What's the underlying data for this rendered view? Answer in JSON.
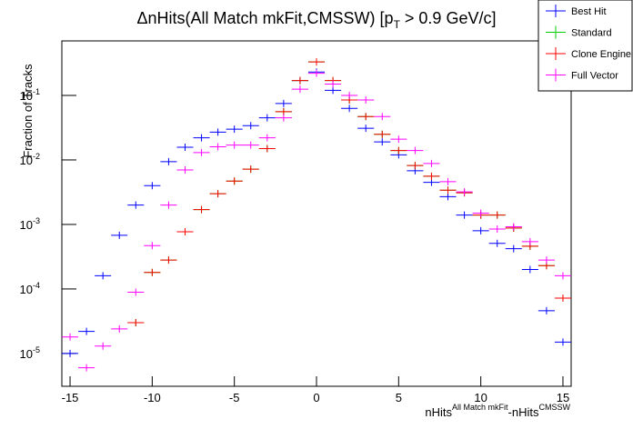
{
  "chart_data": {
    "type": "histogram",
    "title": [
      "ΔnHits(All Match mkFit,CMSSW) [p",
      "T",
      " > 0.9 GeV/c]"
    ],
    "x_label": [
      "nHits",
      "All Match mkFit",
      "-nHits",
      "CMSSW"
    ],
    "y_label": "Fraction of Tracks",
    "x": [
      -15,
      -14,
      -13,
      -12,
      -11,
      -10,
      -9,
      -8,
      -7,
      -6,
      -5,
      -4,
      -3,
      -2,
      -1,
      0,
      1,
      2,
      3,
      4,
      5,
      6,
      7,
      8,
      9,
      10,
      11,
      12,
      13,
      14,
      15
    ],
    "series": [
      {
        "name": "Best Hit",
        "color": "#0000ff",
        "values": [
          1e-05,
          2.2e-05,
          0.00016,
          0.00068,
          0.002,
          0.004,
          0.0094,
          0.0157,
          0.022,
          0.027,
          0.03,
          0.034,
          0.045,
          0.075,
          0.17,
          0.23,
          0.12,
          0.063,
          0.031,
          0.019,
          0.012,
          0.0068,
          0.0045,
          0.0027,
          0.0014,
          0.0008,
          0.00051,
          0.00042,
          0.0002,
          4.6e-05,
          1.5e-05
        ]
      },
      {
        "name": "Standard",
        "color": "#00cc00",
        "values": [
          null,
          null,
          null,
          null,
          3e-05,
          0.00018,
          0.00028,
          0.00077,
          0.0017,
          0.003,
          0.0047,
          0.0072,
          0.015,
          0.056,
          0.17,
          0.33,
          0.17,
          0.085,
          0.047,
          0.025,
          0.014,
          0.0082,
          0.0056,
          0.0034,
          0.0031,
          0.0014,
          0.0014,
          0.00088,
          0.00046,
          0.00023,
          7.2e-05
        ]
      },
      {
        "name": "Clone Engine",
        "color": "#ff0000",
        "values": [
          null,
          null,
          null,
          null,
          3e-05,
          0.00018,
          0.00028,
          0.00077,
          0.0017,
          0.003,
          0.0047,
          0.0072,
          0.015,
          0.056,
          0.17,
          0.33,
          0.17,
          0.085,
          0.047,
          0.025,
          0.014,
          0.0082,
          0.0056,
          0.0034,
          0.0031,
          0.0014,
          0.0014,
          0.00088,
          0.00046,
          0.00023,
          7.2e-05
        ]
      },
      {
        "name": "Full Vector",
        "color": "#ff00ff",
        "values": [
          1.8e-05,
          6e-06,
          1.3e-05,
          2.4e-05,
          8.9e-05,
          0.00047,
          0.002,
          0.007,
          0.013,
          0.016,
          0.017,
          0.017,
          0.022,
          0.045,
          0.125,
          0.22,
          0.15,
          0.1,
          0.085,
          0.047,
          0.021,
          0.014,
          0.0088,
          0.0046,
          0.0032,
          0.0015,
          0.00085,
          0.00092,
          0.00054,
          0.00028,
          0.00016
        ]
      }
    ],
    "xlim": [
      -15.5,
      15.5
    ],
    "xticks": [
      -15,
      -10,
      -5,
      0,
      5,
      10,
      15
    ],
    "ylim": [
      3.1e-06,
      0.7
    ],
    "yticks": [
      {
        "value": 1e-05,
        "label": "10",
        "exponent": "-5"
      },
      {
        "value": 0.0001,
        "label": "10",
        "exponent": "-4"
      },
      {
        "value": 0.001,
        "label": "10",
        "exponent": "-3"
      },
      {
        "value": 0.01,
        "label": "10",
        "exponent": "-2"
      },
      {
        "value": 0.1,
        "label": "10",
        "exponent": "-1"
      }
    ],
    "log_y": true,
    "legend": "top-right"
  }
}
